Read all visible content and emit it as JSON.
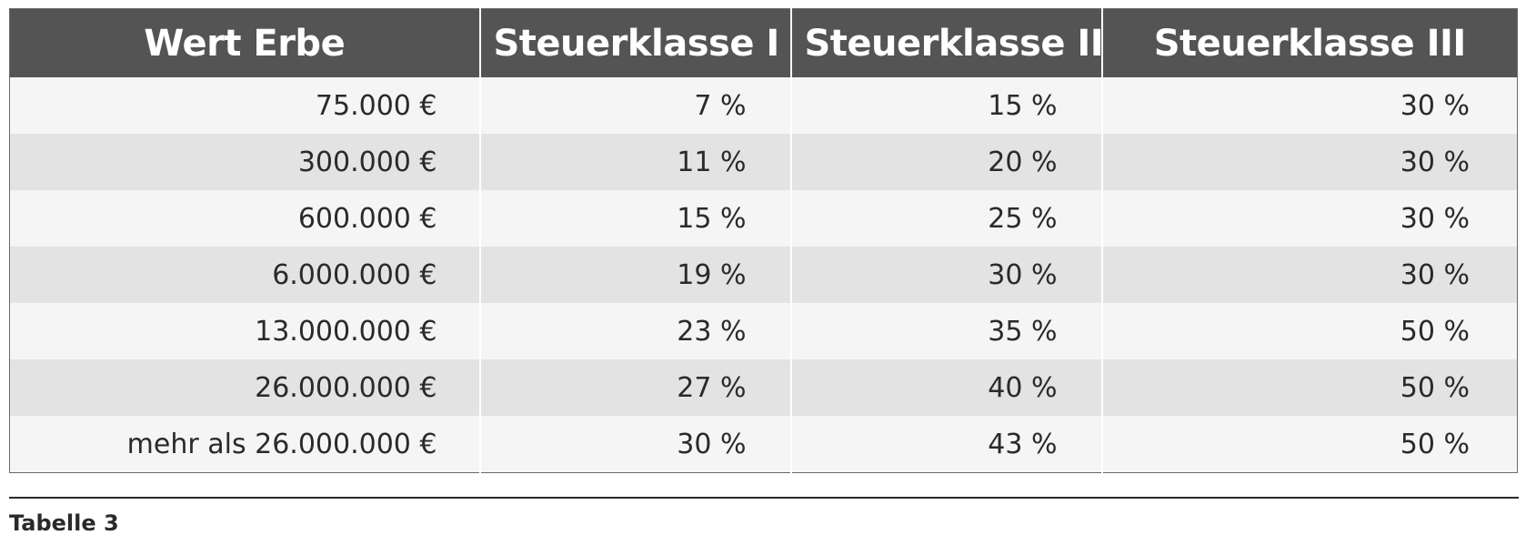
{
  "table": {
    "headers": [
      "Wert Erbe",
      "Steuerklasse I",
      "Steuerklasse II",
      "Steuerklasse III"
    ],
    "rows": [
      [
        "75.000 €",
        "7 %",
        "15 %",
        "30 %"
      ],
      [
        "300.000 €",
        "11 %",
        "20 %",
        "30 %"
      ],
      [
        "600.000 €",
        "15 %",
        "25 %",
        "30 %"
      ],
      [
        "6.000.000 €",
        "19 %",
        "30 %",
        "30 %"
      ],
      [
        "13.000.000 €",
        "23 %",
        "35 %",
        "50 %"
      ],
      [
        "26.000.000 €",
        "27 %",
        "40 %",
        "50 %"
      ],
      [
        "mehr als 26.000.000 €",
        "30 %",
        "43 %",
        "50 %"
      ]
    ]
  },
  "caption": "Tabelle 3",
  "colors": {
    "header_background": "#545454",
    "header_text": "#ffffff",
    "row_light": "#f5f5f5",
    "row_dark": "#e3e3e3",
    "text": "#2a2a2a"
  }
}
